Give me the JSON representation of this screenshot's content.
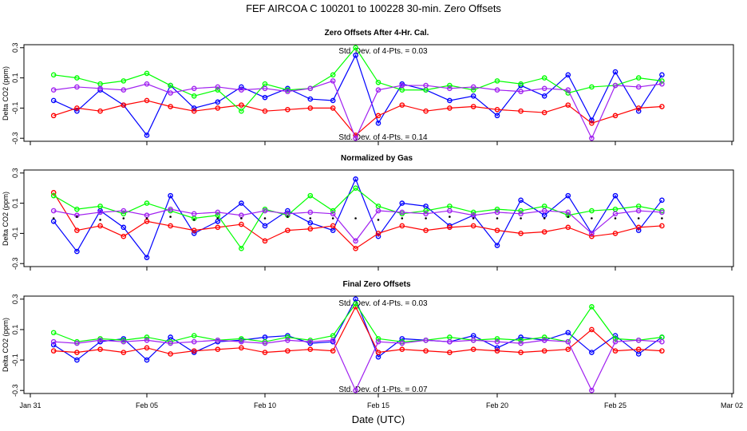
{
  "title": "FEF   AIRCOA C   100201 to 100228   30-min. Zero Offsets",
  "xlabel": "Date (UTC)",
  "x_ticks": [
    "Jan 31",
    "Feb 05",
    "Feb 10",
    "Feb 15",
    "Feb 20",
    "Feb 25",
    "Mar 02"
  ],
  "colors": {
    "series_1": "#0000ff",
    "series_2": "#ff0000",
    "series_3": "#00ff00",
    "series_4": "#a020f0",
    "norm": "#000000"
  },
  "chart_data": [
    {
      "type": "scatter",
      "title": "Zero Offsets After 4-Hr. Cal.",
      "ylabel": "Delta CO2 (ppm)",
      "x_range_days": [
        31,
        62
      ],
      "ylim": [
        -0.32,
        0.32
      ],
      "yticks": [
        -0.3,
        -0.1,
        0.1,
        0.3
      ],
      "ytick_labels": [
        "-0.3",
        "-0.1",
        "0.1",
        "0.3"
      ],
      "annotations": [
        "Std. Dev. of 4-Pts. = 0.03",
        "Std. Dev. of 4-Pts. = 0.14"
      ],
      "series": [
        {
          "key": "series_1",
          "x": [
            32.0,
            33.0,
            34.0,
            35.0,
            36.0,
            37.0,
            38.0,
            39.0,
            40.0,
            41.0,
            42.0,
            43.0,
            44.0,
            45.0,
            46.0,
            47.0,
            48.0,
            49.0,
            50.0,
            51.0,
            52.0,
            53.0,
            54.0,
            55.0,
            56.0,
            57.0,
            58.0
          ],
          "values": [
            -0.05,
            -0.12,
            0.02,
            -0.08,
            -0.28,
            0.05,
            -0.1,
            -0.06,
            0.04,
            -0.03,
            0.03,
            -0.04,
            -0.05,
            0.25,
            -0.2,
            0.06,
            0.02,
            -0.05,
            -0.02,
            -0.15,
            0.05,
            -0.02,
            0.12,
            -0.18,
            0.14,
            -0.12,
            0.12
          ]
        },
        {
          "key": "series_2",
          "x": [
            32.0,
            33.0,
            34.0,
            35.0,
            36.0,
            37.0,
            38.0,
            39.0,
            40.0,
            41.0,
            42.0,
            43.0,
            44.0,
            45.0,
            46.0,
            47.0,
            48.0,
            49.0,
            50.0,
            51.0,
            52.0,
            53.0,
            54.0,
            55.0,
            56.0,
            57.0,
            58.0
          ],
          "values": [
            -0.15,
            -0.1,
            -0.12,
            -0.08,
            -0.05,
            -0.09,
            -0.12,
            -0.1,
            -0.08,
            -0.12,
            -0.11,
            -0.1,
            -0.1,
            -0.28,
            -0.15,
            -0.08,
            -0.12,
            -0.1,
            -0.09,
            -0.11,
            -0.12,
            -0.13,
            -0.08,
            -0.2,
            -0.15,
            -0.1,
            -0.09
          ]
        },
        {
          "key": "series_3",
          "x": [
            32.0,
            33.0,
            34.0,
            35.0,
            36.0,
            37.0,
            38.0,
            39.0,
            40.0,
            41.0,
            42.0,
            43.0,
            44.0,
            45.0,
            46.0,
            47.0,
            48.0,
            49.0,
            50.0,
            51.0,
            52.0,
            53.0,
            54.0,
            55.0,
            56.0,
            57.0,
            58.0
          ],
          "values": [
            0.12,
            0.1,
            0.06,
            0.08,
            0.13,
            0.05,
            -0.02,
            0.02,
            -0.12,
            0.06,
            0.02,
            0.03,
            0.12,
            0.3,
            0.07,
            0.02,
            0.02,
            0.05,
            0.02,
            0.08,
            0.06,
            0.1,
            0.0,
            0.04,
            0.05,
            0.1,
            0.08
          ]
        },
        {
          "key": "series_4",
          "x": [
            32.0,
            33.0,
            34.0,
            35.0,
            36.0,
            37.0,
            38.0,
            39.0,
            40.0,
            41.0,
            42.0,
            43.0,
            44.0,
            45.0,
            46.0,
            47.0,
            48.0,
            49.0,
            50.0,
            51.0,
            52.0,
            53.0,
            54.0,
            55.0,
            56.0,
            57.0,
            58.0
          ],
          "values": [
            0.02,
            0.04,
            0.03,
            0.02,
            0.06,
            0.0,
            0.03,
            0.04,
            0.02,
            0.03,
            0.01,
            0.03,
            0.08,
            -0.3,
            0.02,
            0.05,
            0.05,
            0.03,
            0.04,
            0.02,
            0.01,
            0.03,
            0.02,
            -0.3,
            0.05,
            0.04,
            0.06
          ]
        }
      ]
    },
    {
      "type": "scatter",
      "title": "Normalized by Gas",
      "ylabel": "Delta CO2 (ppm)",
      "x_range_days": [
        31,
        62
      ],
      "ylim": [
        -0.32,
        0.32
      ],
      "yticks": [
        -0.3,
        -0.1,
        0.1,
        0.3
      ],
      "ytick_labels": [
        "-0.3",
        "-0.1",
        "0.1",
        "0.3"
      ],
      "annotations": [],
      "series": [
        {
          "key": "series_1",
          "x": [
            32.0,
            33.0,
            34.0,
            35.0,
            36.0,
            37.0,
            38.0,
            39.0,
            40.0,
            41.0,
            42.0,
            43.0,
            44.0,
            45.0,
            46.0,
            47.0,
            48.0,
            49.0,
            50.0,
            51.0,
            52.0,
            53.0,
            54.0,
            55.0,
            56.0,
            57.0,
            58.0
          ],
          "values": [
            -0.02,
            -0.22,
            0.05,
            -0.06,
            -0.26,
            0.15,
            -0.1,
            -0.02,
            0.1,
            -0.05,
            0.05,
            -0.03,
            -0.08,
            0.26,
            -0.12,
            0.1,
            0.08,
            -0.05,
            0.02,
            -0.18,
            0.12,
            0.02,
            0.15,
            -0.1,
            0.15,
            -0.08,
            0.12
          ]
        },
        {
          "key": "series_2",
          "x": [
            32.0,
            33.0,
            34.0,
            35.0,
            36.0,
            37.0,
            38.0,
            39.0,
            40.0,
            41.0,
            42.0,
            43.0,
            44.0,
            45.0,
            46.0,
            47.0,
            48.0,
            49.0,
            50.0,
            51.0,
            52.0,
            53.0,
            54.0,
            55.0,
            56.0,
            57.0,
            58.0
          ],
          "values": [
            0.17,
            -0.08,
            -0.05,
            -0.12,
            -0.02,
            -0.05,
            -0.08,
            -0.06,
            -0.04,
            -0.15,
            -0.08,
            -0.07,
            -0.05,
            -0.2,
            -0.1,
            -0.05,
            -0.08,
            -0.06,
            -0.05,
            -0.08,
            -0.1,
            -0.09,
            -0.06,
            -0.12,
            -0.1,
            -0.06,
            -0.05
          ]
        },
        {
          "key": "series_3",
          "x": [
            32.0,
            33.0,
            34.0,
            35.0,
            36.0,
            37.0,
            38.0,
            39.0,
            40.0,
            41.0,
            42.0,
            43.0,
            44.0,
            45.0,
            46.0,
            47.0,
            48.0,
            49.0,
            50.0,
            51.0,
            52.0,
            53.0,
            54.0,
            55.0,
            56.0,
            57.0,
            58.0
          ],
          "values": [
            0.15,
            0.06,
            0.08,
            0.03,
            0.1,
            0.05,
            0.0,
            0.02,
            -0.2,
            0.06,
            0.02,
            0.15,
            0.05,
            0.2,
            0.08,
            0.03,
            0.05,
            0.08,
            0.04,
            0.06,
            0.05,
            0.08,
            0.02,
            0.05,
            0.06,
            0.08,
            0.05
          ]
        },
        {
          "key": "series_4",
          "x": [
            32.0,
            33.0,
            34.0,
            35.0,
            36.0,
            37.0,
            38.0,
            39.0,
            40.0,
            41.0,
            42.0,
            43.0,
            44.0,
            45.0,
            46.0,
            47.0,
            48.0,
            49.0,
            50.0,
            51.0,
            52.0,
            53.0,
            54.0,
            55.0,
            56.0,
            57.0,
            58.0
          ],
          "values": [
            0.05,
            0.02,
            0.04,
            0.05,
            0.02,
            0.06,
            0.03,
            0.04,
            0.02,
            0.05,
            0.03,
            0.04,
            0.03,
            -0.15,
            0.05,
            0.04,
            0.03,
            0.05,
            0.02,
            0.04,
            0.03,
            0.05,
            0.04,
            -0.1,
            0.03,
            0.05,
            0.04
          ]
        },
        {
          "key": "norm",
          "x": [
            32.0,
            33.0,
            34.0,
            35.0,
            36.0,
            37.0,
            38.0,
            39.0,
            40.0,
            41.0,
            42.0,
            43.0,
            44.0,
            45.0,
            46.0,
            47.0,
            48.0,
            49.0,
            50.0,
            51.0,
            52.0,
            53.0,
            54.0,
            55.0,
            56.0,
            57.0,
            58.0
          ],
          "values": [
            0.0,
            0.01,
            -0.01,
            0.0,
            0.0,
            0.01,
            -0.01,
            0.0,
            0.0,
            0.0,
            0.01,
            0.0,
            0.0,
            0.0,
            -0.01,
            0.0,
            0.0,
            0.01,
            0.0,
            0.0,
            0.0,
            0.0,
            0.01,
            0.0,
            0.0,
            0.0,
            0.0
          ]
        }
      ]
    },
    {
      "type": "scatter",
      "title": "Final Zero Offsets",
      "ylabel": "Delta CO2 (ppm)",
      "x_range_days": [
        31,
        62
      ],
      "ylim": [
        -0.32,
        0.32
      ],
      "yticks": [
        -0.3,
        -0.1,
        0.1,
        0.3
      ],
      "ytick_labels": [
        "-0.3",
        "-0.1",
        "0.1",
        "0.3"
      ],
      "annotations": [
        "Std. Dev. of 4-Pts. = 0.03",
        "Std. Dev. of 1-Pts. = 0.07"
      ],
      "series": [
        {
          "key": "series_1",
          "x": [
            32.0,
            33.0,
            34.0,
            35.0,
            36.0,
            37.0,
            38.0,
            39.0,
            40.0,
            41.0,
            42.0,
            43.0,
            44.0,
            45.0,
            46.0,
            47.0,
            48.0,
            49.0,
            50.0,
            51.0,
            52.0,
            53.0,
            54.0,
            55.0,
            56.0,
            57.0,
            58.0
          ],
          "values": [
            0.0,
            -0.1,
            0.02,
            0.04,
            -0.1,
            0.05,
            -0.05,
            0.02,
            0.03,
            0.05,
            0.06,
            0.01,
            0.02,
            0.3,
            -0.08,
            0.04,
            0.03,
            0.02,
            0.06,
            -0.02,
            0.05,
            0.03,
            0.08,
            -0.05,
            0.06,
            -0.06,
            0.05
          ]
        },
        {
          "key": "series_2",
          "x": [
            32.0,
            33.0,
            34.0,
            35.0,
            36.0,
            37.0,
            38.0,
            39.0,
            40.0,
            41.0,
            42.0,
            43.0,
            44.0,
            45.0,
            46.0,
            47.0,
            48.0,
            49.0,
            50.0,
            51.0,
            52.0,
            53.0,
            54.0,
            55.0,
            56.0,
            57.0,
            58.0
          ],
          "values": [
            -0.04,
            -0.05,
            -0.03,
            -0.05,
            -0.02,
            -0.06,
            -0.04,
            -0.03,
            -0.02,
            -0.05,
            -0.04,
            -0.03,
            -0.04,
            0.25,
            -0.05,
            -0.03,
            -0.04,
            -0.05,
            -0.03,
            -0.04,
            -0.05,
            -0.04,
            -0.03,
            0.1,
            -0.04,
            -0.03,
            -0.04
          ]
        },
        {
          "key": "series_3",
          "x": [
            32.0,
            33.0,
            34.0,
            35.0,
            36.0,
            37.0,
            38.0,
            39.0,
            40.0,
            41.0,
            42.0,
            43.0,
            44.0,
            45.0,
            46.0,
            47.0,
            48.0,
            49.0,
            50.0,
            51.0,
            52.0,
            53.0,
            54.0,
            55.0,
            56.0,
            57.0,
            58.0
          ],
          "values": [
            0.08,
            0.02,
            0.04,
            0.03,
            0.05,
            0.02,
            0.06,
            0.03,
            0.04,
            0.02,
            0.05,
            0.03,
            0.06,
            0.27,
            0.04,
            0.02,
            0.03,
            0.05,
            0.03,
            0.04,
            0.03,
            0.05,
            0.02,
            0.25,
            0.04,
            0.03,
            0.05
          ]
        },
        {
          "key": "series_4",
          "x": [
            32.0,
            33.0,
            34.0,
            35.0,
            36.0,
            37.0,
            38.0,
            39.0,
            40.0,
            41.0,
            42.0,
            43.0,
            44.0,
            45.0,
            46.0,
            47.0,
            48.0,
            49.0,
            50.0,
            51.0,
            52.0,
            53.0,
            54.0,
            55.0,
            56.0,
            57.0,
            58.0
          ],
          "values": [
            0.02,
            0.01,
            0.03,
            0.02,
            0.03,
            0.01,
            0.02,
            0.03,
            0.02,
            0.01,
            0.03,
            0.02,
            0.03,
            -0.3,
            0.02,
            0.01,
            0.03,
            0.02,
            0.03,
            0.02,
            0.01,
            0.03,
            0.02,
            -0.3,
            0.02,
            0.03,
            0.02
          ]
        }
      ]
    }
  ]
}
